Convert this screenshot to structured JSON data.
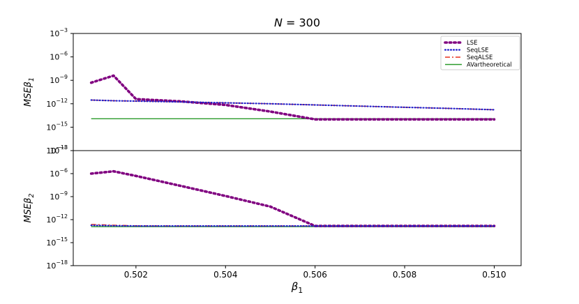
{
  "figure": {
    "title_main": "N = 300",
    "xlabel": "β1"
  },
  "colors": {
    "LSE": "#800080",
    "SeqLSE": "#1f1fcc",
    "SeqALSE": "#e8301e",
    "AVartheoretical": "#2a9a2a"
  },
  "chart_data": [
    {
      "type": "line",
      "title": "N = 300",
      "ylabel": "MSEβ1",
      "xlabel": "",
      "yscale": "log",
      "ylim": [
        1e-18,
        0.001
      ],
      "xlim": [
        0.5006,
        0.5106
      ],
      "x": [
        0.501,
        0.5015,
        0.502,
        0.503,
        0.504,
        0.505,
        0.506,
        0.507,
        0.508,
        0.509,
        0.51
      ],
      "yticks": [
        {
          "value": 0.001,
          "label": "10−3"
        },
        {
          "value": 1e-06,
          "label": "10−6"
        },
        {
          "value": 1e-09,
          "label": "10−9"
        },
        {
          "value": 1e-12,
          "label": "10−12"
        },
        {
          "value": 1e-15,
          "label": "10−15"
        },
        {
          "value": 1e-18,
          "label": "10−18"
        }
      ],
      "legend_position": "top-right",
      "series": [
        {
          "name": "LSE",
          "style": "dotted",
          "values": [
            5e-10,
            4e-09,
            4e-12,
            2e-12,
            7e-13,
            1e-13,
            1e-14,
            1e-14,
            1e-14,
            1e-14,
            1e-14
          ]
        },
        {
          "name": "SeqLSE",
          "style": "dotted-fine",
          "values": [
            3e-12,
            2.4e-12,
            2.2e-12,
            1.7e-12,
            1.3e-12,
            1e-12,
            7e-13,
            5e-13,
            3.5e-13,
            2.5e-13,
            1.7e-13
          ]
        },
        {
          "name": "SeqALSE",
          "style": "dashdot",
          "values": [
            3e-12,
            2.4e-12,
            2.2e-12,
            1.7e-12,
            1.3e-12,
            1e-12,
            7e-13,
            5e-13,
            3.5e-13,
            2.5e-13,
            1.7e-13
          ]
        },
        {
          "name": "AVartheoretical",
          "style": "solid",
          "values": [
            1.2e-14,
            1.2e-14,
            1.2e-14,
            1.2e-14,
            1.2e-14,
            1.2e-14,
            1.2e-14,
            1.2e-14,
            1.2e-14,
            1.2e-14,
            1.2e-14
          ]
        }
      ]
    },
    {
      "type": "line",
      "title": "",
      "ylabel": "MSEβ2",
      "xlabel": "β1",
      "yscale": "log",
      "ylim": [
        1e-18,
        0.001
      ],
      "xlim": [
        0.5006,
        0.5106
      ],
      "x": [
        0.501,
        0.5015,
        0.502,
        0.503,
        0.504,
        0.505,
        0.506,
        0.507,
        0.508,
        0.509,
        0.51
      ],
      "xticks": [
        {
          "value": 0.502,
          "label": "0.502"
        },
        {
          "value": 0.504,
          "label": "0.504"
        },
        {
          "value": 0.506,
          "label": "0.506"
        },
        {
          "value": 0.508,
          "label": "0.508"
        },
        {
          "value": 0.51,
          "label": "0.510"
        }
      ],
      "yticks": [
        {
          "value": 0.001,
          "label": "10−3"
        },
        {
          "value": 1e-06,
          "label": "10−6"
        },
        {
          "value": 1e-09,
          "label": "10−9"
        },
        {
          "value": 1e-12,
          "label": "10−12"
        },
        {
          "value": 1e-15,
          "label": "10−15"
        },
        {
          "value": 1e-18,
          "label": "10−18"
        }
      ],
      "series": [
        {
          "name": "LSE",
          "style": "dotted",
          "values": [
            1e-06,
            2e-06,
            5e-07,
            2.5e-08,
            1.2e-09,
            5e-11,
            1.5e-13,
            1.5e-13,
            1.5e-13,
            1.5e-13,
            1.5e-13
          ]
        },
        {
          "name": "SeqLSE",
          "style": "dotted-fine",
          "values": [
            1.8e-13,
            1.6e-13,
            1.5e-13,
            1.5e-13,
            1.5e-13,
            1.5e-13,
            1.5e-13,
            1.5e-13,
            1.5e-13,
            1.5e-13,
            1.5e-13
          ]
        },
        {
          "name": "SeqALSE",
          "style": "dashdot",
          "values": [
            2.4e-13,
            1.9e-13,
            1.6e-13,
            1.5e-13,
            1.5e-13,
            1.5e-13,
            1.5e-13,
            1.5e-13,
            1.5e-13,
            1.5e-13,
            1.5e-13
          ]
        },
        {
          "name": "AVartheoretical",
          "style": "solid",
          "values": [
            1.2e-13,
            1.2e-13,
            1.2e-13,
            1.2e-13,
            1.2e-13,
            1.2e-13,
            1.2e-13,
            1.2e-13,
            1.2e-13,
            1.2e-13,
            1.2e-13
          ]
        }
      ]
    }
  ]
}
